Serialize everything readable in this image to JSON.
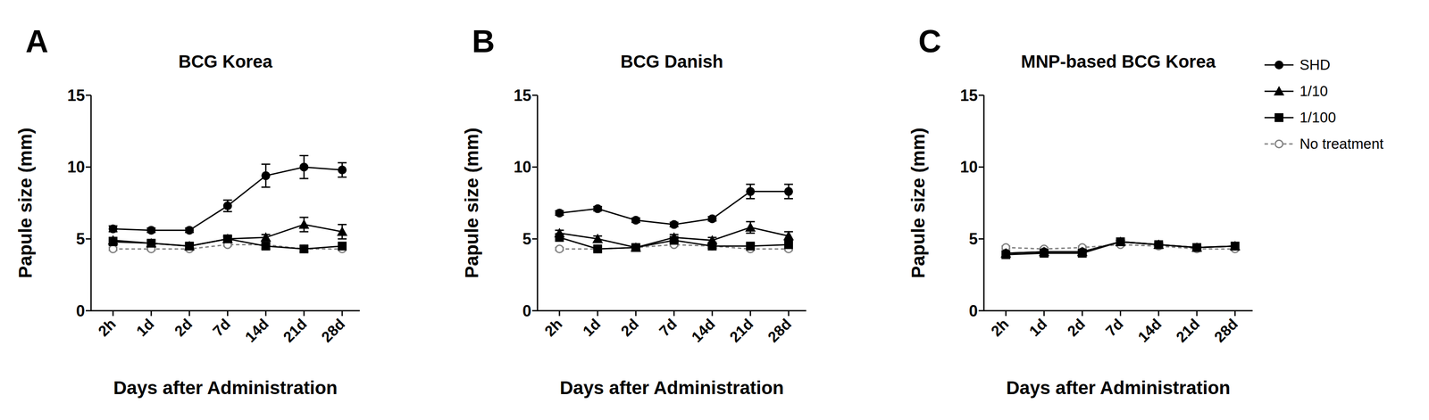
{
  "chart_data": [
    {
      "type": "line",
      "label": "A",
      "title": "BCG Korea",
      "x_label": "Days after Administration",
      "y_label": "Papule size (mm)",
      "categories": [
        "2h",
        "1d",
        "2d",
        "7d",
        "14d",
        "21d",
        "28d"
      ],
      "ylim": [
        0,
        15
      ],
      "yticks": [
        0,
        5,
        10,
        15
      ],
      "series": [
        {
          "name": "SHD",
          "color": "#000000",
          "marker": "circle",
          "line_style": "solid",
          "values": [
            5.7,
            5.6,
            5.6,
            7.3,
            9.4,
            10.0,
            9.8
          ],
          "errors": [
            0.2,
            0.15,
            0.15,
            0.4,
            0.8,
            0.8,
            0.5
          ]
        },
        {
          "name": "1/10",
          "color": "#000000",
          "marker": "triangle",
          "line_style": "solid",
          "values": [
            4.9,
            4.7,
            4.5,
            5.0,
            5.1,
            6.0,
            5.5
          ],
          "errors": [
            0.2,
            0.2,
            0.2,
            0.2,
            0.2,
            0.5,
            0.5
          ]
        },
        {
          "name": "1/100",
          "color": "#000000",
          "marker": "square",
          "line_style": "solid",
          "values": [
            4.8,
            4.7,
            4.5,
            5.0,
            4.5,
            4.3,
            4.5
          ],
          "errors": [
            0.15,
            0.15,
            0.15,
            0.15,
            0.2,
            0.2,
            0.2
          ]
        },
        {
          "name": "No treatment",
          "color": "#808080",
          "marker": "open_circle",
          "line_style": "dashed",
          "values": [
            4.3,
            4.3,
            4.3,
            4.6,
            4.6,
            4.3,
            4.3
          ],
          "errors": [
            0.1,
            0.1,
            0.1,
            0.1,
            0.1,
            0.1,
            0.1
          ]
        }
      ]
    },
    {
      "type": "line",
      "label": "B",
      "title": "BCG Danish",
      "x_label": "Days after Administration",
      "y_label": "Papule size (mm)",
      "categories": [
        "2h",
        "1d",
        "2d",
        "7d",
        "14d",
        "21d",
        "28d"
      ],
      "ylim": [
        0,
        15
      ],
      "yticks": [
        0,
        5,
        10,
        15
      ],
      "series": [
        {
          "name": "SHD",
          "color": "#000000",
          "marker": "circle",
          "line_style": "solid",
          "values": [
            6.8,
            7.1,
            6.3,
            6.0,
            6.4,
            8.3,
            8.3
          ],
          "errors": [
            0.15,
            0.15,
            0.15,
            0.15,
            0.15,
            0.5,
            0.5
          ]
        },
        {
          "name": "1/10",
          "color": "#000000",
          "marker": "triangle",
          "line_style": "solid",
          "values": [
            5.4,
            5.0,
            4.4,
            5.1,
            4.9,
            5.8,
            5.2
          ],
          "errors": [
            0.2,
            0.2,
            0.2,
            0.2,
            0.2,
            0.4,
            0.3
          ]
        },
        {
          "name": "1/100",
          "color": "#000000",
          "marker": "square",
          "line_style": "solid",
          "values": [
            5.1,
            4.3,
            4.4,
            4.9,
            4.5,
            4.5,
            4.6
          ],
          "errors": [
            0.15,
            0.15,
            0.15,
            0.15,
            0.15,
            0.15,
            0.15
          ]
        },
        {
          "name": "No treatment",
          "color": "#808080",
          "marker": "open_circle",
          "line_style": "dashed",
          "values": [
            4.3,
            4.3,
            4.4,
            4.6,
            4.5,
            4.3,
            4.3
          ],
          "errors": [
            0.1,
            0.1,
            0.1,
            0.1,
            0.1,
            0.1,
            0.1
          ]
        }
      ]
    },
    {
      "type": "line",
      "label": "C",
      "title": "MNP-based BCG Korea",
      "x_label": "Days after Administration",
      "y_label": "Papule size (mm)",
      "categories": [
        "2h",
        "1d",
        "2d",
        "7d",
        "14d",
        "21d",
        "28d"
      ],
      "ylim": [
        0,
        15
      ],
      "yticks": [
        0,
        5,
        10,
        15
      ],
      "legend": "right",
      "series": [
        {
          "name": "SHD",
          "color": "#000000",
          "marker": "circle",
          "line_style": "solid",
          "values": [
            4.0,
            4.1,
            4.1,
            4.8,
            4.6,
            4.4,
            4.5
          ],
          "errors": [
            0.1,
            0.1,
            0.1,
            0.1,
            0.1,
            0.1,
            0.1
          ]
        },
        {
          "name": "1/10",
          "color": "#000000",
          "marker": "triangle",
          "line_style": "solid",
          "values": [
            4.0,
            4.1,
            4.1,
            4.8,
            4.6,
            4.4,
            4.5
          ],
          "errors": [
            0.1,
            0.1,
            0.1,
            0.1,
            0.1,
            0.1,
            0.1
          ]
        },
        {
          "name": "1/100",
          "color": "#000000",
          "marker": "square",
          "line_style": "solid",
          "values": [
            3.9,
            4.0,
            4.0,
            4.8,
            4.6,
            4.4,
            4.5
          ],
          "errors": [
            0.1,
            0.1,
            0.1,
            0.1,
            0.1,
            0.1,
            0.1
          ]
        },
        {
          "name": "No treatment",
          "color": "#808080",
          "marker": "open_circle",
          "line_style": "dashed",
          "values": [
            4.4,
            4.3,
            4.4,
            4.6,
            4.5,
            4.3,
            4.3
          ],
          "errors": [
            0.1,
            0.1,
            0.1,
            0.1,
            0.1,
            0.1,
            0.1
          ]
        }
      ]
    }
  ]
}
